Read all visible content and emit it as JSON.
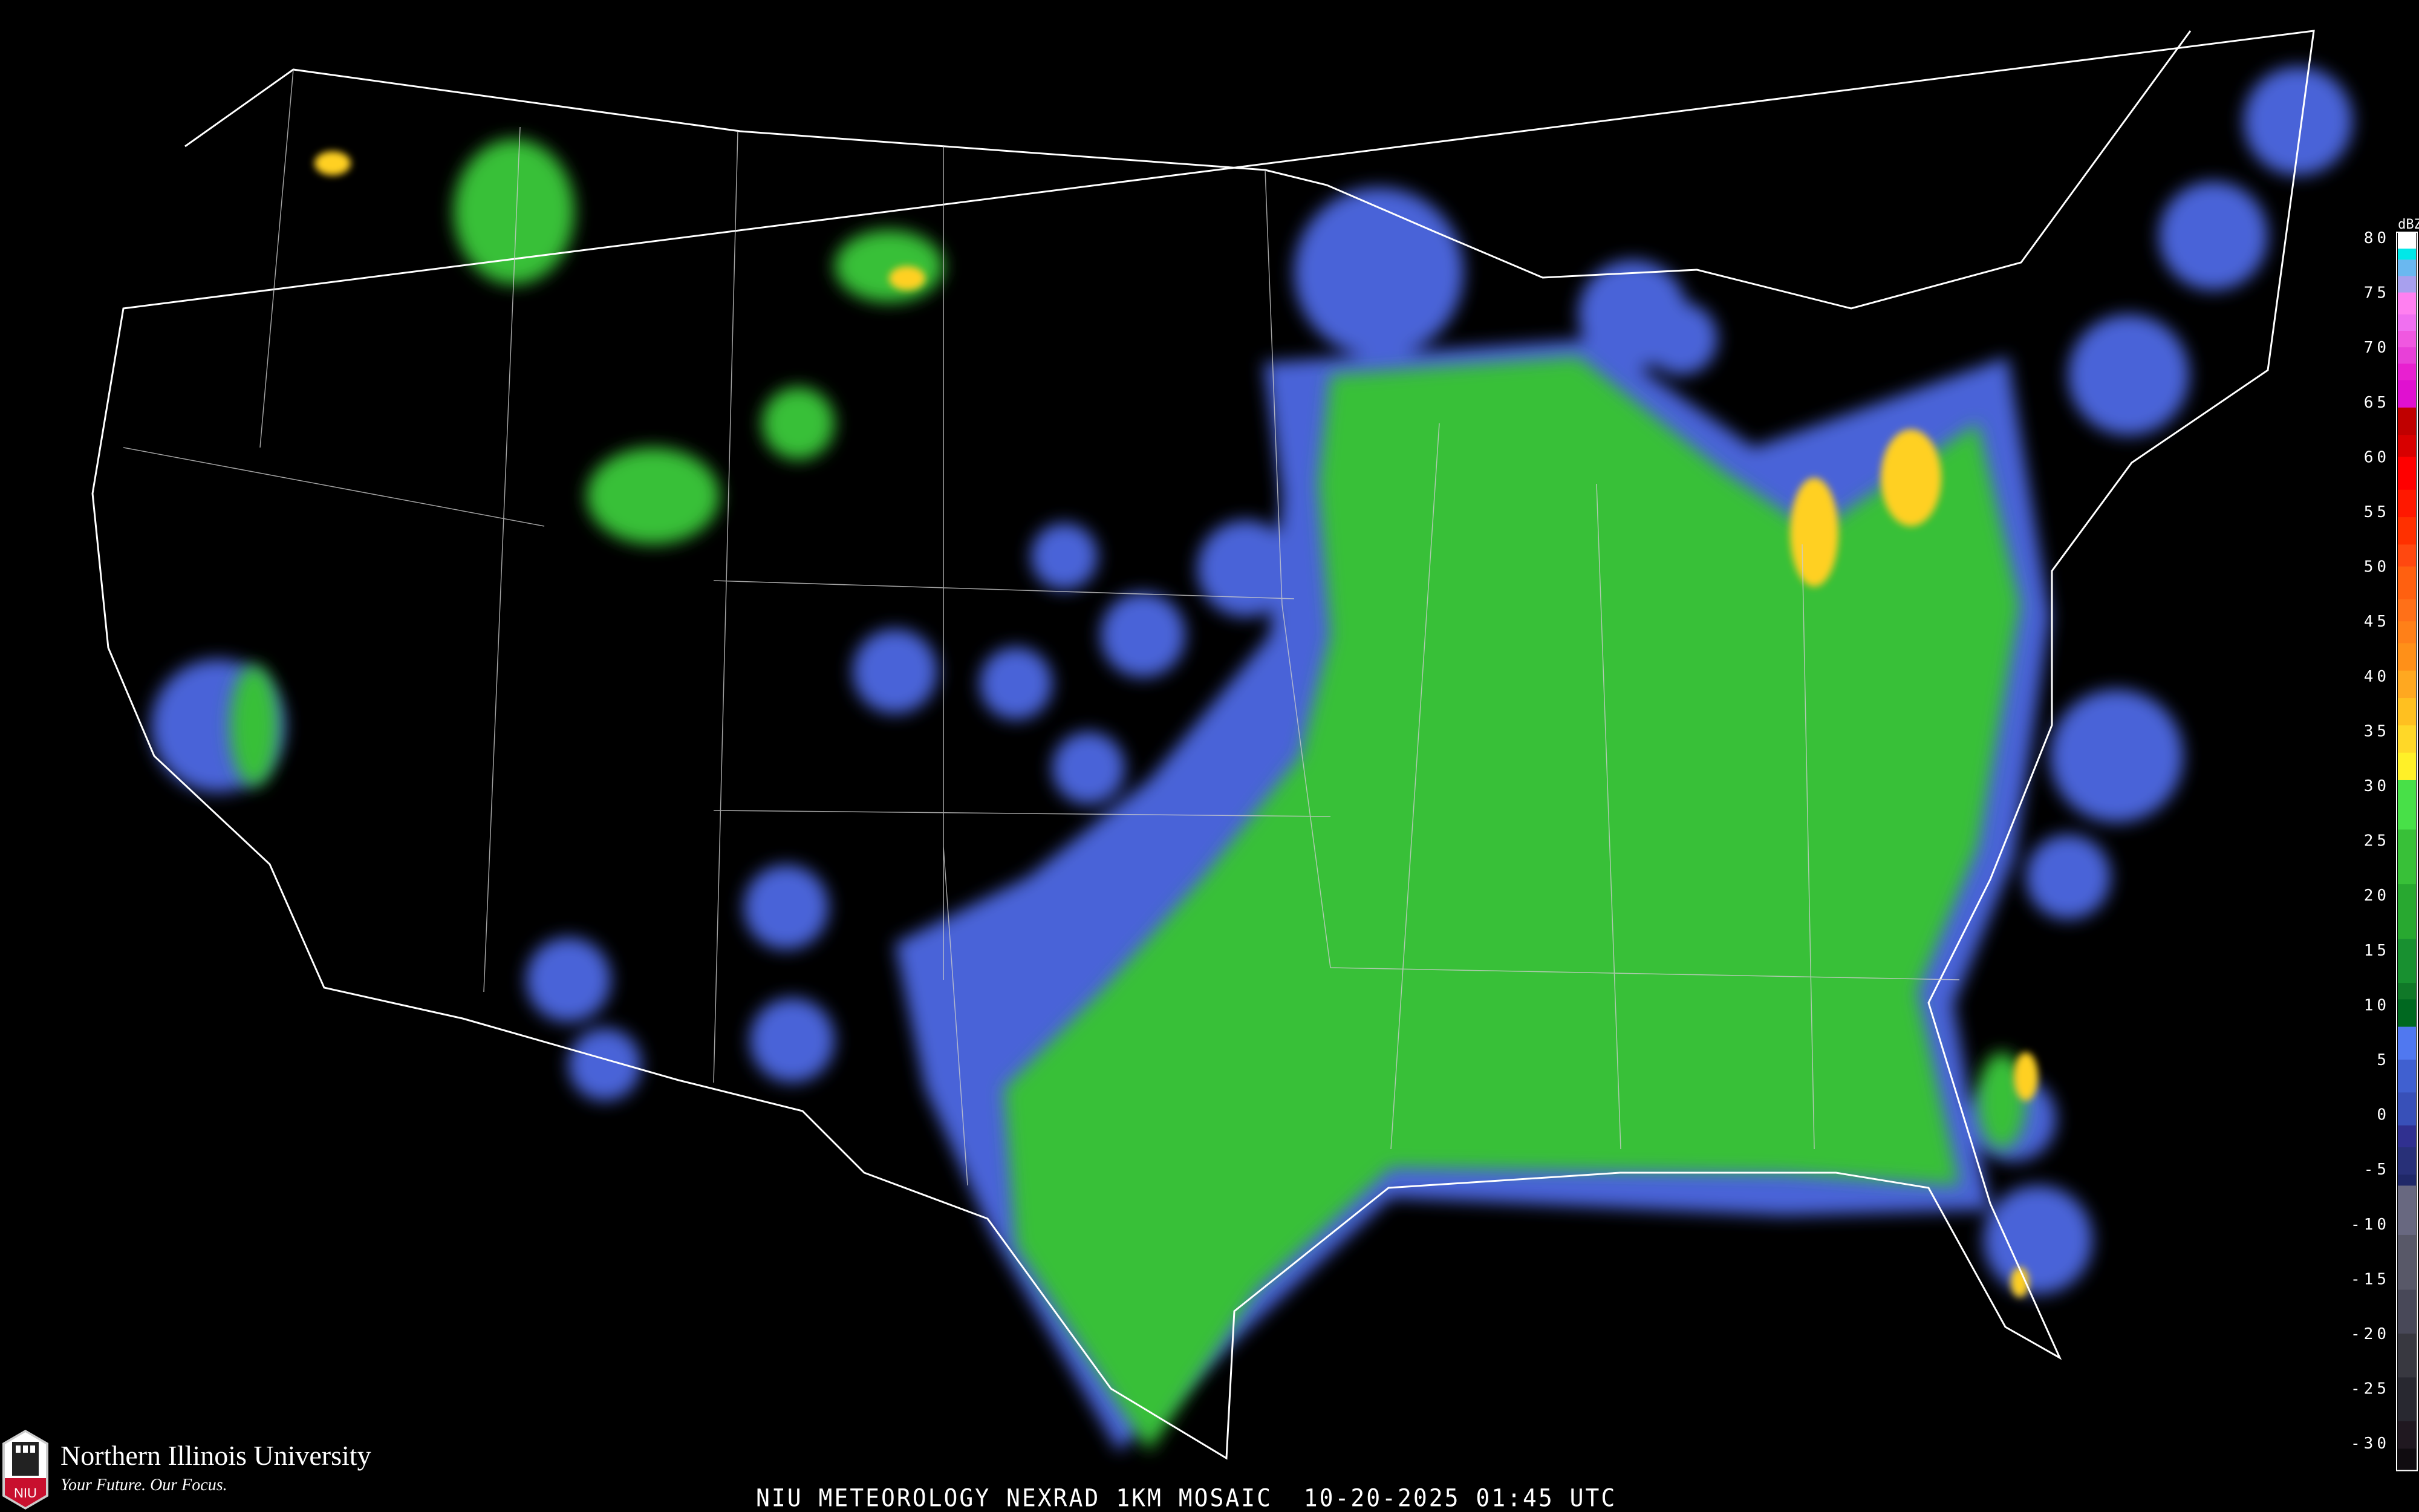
{
  "caption": "NIU METEOROLOGY NEXRAD 1KM MOSAIC  10-20-2025 01:45 UTC",
  "logo": {
    "name": "Northern Illinois University",
    "tagline": "Your Future. Our Focus.",
    "mark_text": "NIU"
  },
  "legend": {
    "unit": "dBZ",
    "ticks": [
      80,
      75,
      70,
      65,
      60,
      55,
      50,
      45,
      40,
      35,
      30,
      25,
      20,
      15,
      10,
      5,
      0,
      -5,
      -10,
      -15,
      -20,
      -25,
      -30
    ],
    "tick_labels": [
      "80",
      "75",
      "70",
      "65",
      "60",
      "55",
      "50",
      "45",
      "40",
      "35",
      "30",
      "25",
      "20",
      "15",
      "10",
      "5",
      "0",
      "-5",
      "-10",
      "-15",
      "-20",
      "-25",
      "-30"
    ],
    "color_scale": [
      [
        80.5,
        "#ffffff"
      ],
      [
        79,
        "#00e8e8"
      ],
      [
        78,
        "#6ab8f0"
      ],
      [
        76.5,
        "#a8a0ee"
      ],
      [
        75,
        "#ff80f0"
      ],
      [
        73,
        "#f070f0"
      ],
      [
        71.5,
        "#f058e0"
      ],
      [
        70,
        "#e840d8"
      ],
      [
        68.5,
        "#e820d0"
      ],
      [
        67,
        "#e010d0"
      ],
      [
        64.5,
        "#c00000"
      ],
      [
        62,
        "#d80000"
      ],
      [
        60,
        "#ff0000"
      ],
      [
        57,
        "#ff1800"
      ],
      [
        54.5,
        "#ff3000"
      ],
      [
        52,
        "#ff4810"
      ],
      [
        50,
        "#ff6010"
      ],
      [
        47,
        "#ff7018"
      ],
      [
        45,
        "#ff8018"
      ],
      [
        43,
        "#ff9018"
      ],
      [
        40.5,
        "#ffa820"
      ],
      [
        38,
        "#ffc020"
      ],
      [
        35.5,
        "#ffd828"
      ],
      [
        33,
        "#fff028"
      ],
      [
        30.5,
        "#48e048"
      ],
      [
        26,
        "#38c038"
      ],
      [
        21,
        "#28a830"
      ],
      [
        16,
        "#189030"
      ],
      [
        12,
        "#107828"
      ],
      [
        10.5,
        "#006820"
      ],
      [
        8,
        "#5078f0"
      ],
      [
        5,
        "#4060d0"
      ],
      [
        2,
        "#3850b8"
      ],
      [
        -1,
        "#303090"
      ],
      [
        -3,
        "#283078"
      ],
      [
        -5.5,
        "#202868"
      ],
      [
        -6.5,
        "#686880"
      ],
      [
        -11,
        "#585868"
      ],
      [
        -16,
        "#484858"
      ],
      [
        -20,
        "#383840"
      ],
      [
        -24,
        "#282830"
      ],
      [
        -28,
        "#201820"
      ],
      [
        -30.5,
        "#100c10"
      ]
    ],
    "min": -32.5
  }
}
